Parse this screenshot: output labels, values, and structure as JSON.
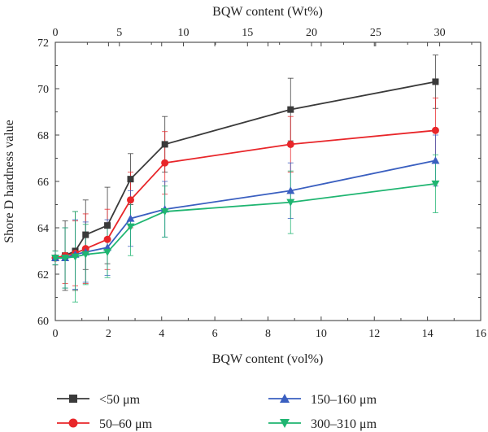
{
  "chart_data": {
    "type": "line",
    "xlabel": "BQW content (vol%)",
    "x2label": "BQW content (Wt%)",
    "ylabel": "Shore D hardness value",
    "xlim": [
      0,
      16
    ],
    "ylim": [
      60,
      72
    ],
    "x2lim": [
      0,
      33.2
    ],
    "xticks": [
      "0",
      "2",
      "4",
      "6",
      "8",
      "10",
      "12",
      "14",
      "16"
    ],
    "x2ticks": [
      "0",
      "5",
      "10",
      "15",
      "20",
      "25",
      "30"
    ],
    "yticks": [
      "60",
      "62",
      "64",
      "66",
      "68",
      "70",
      "72"
    ],
    "grid": false,
    "legend_position": "bottom",
    "series": [
      {
        "name": "<50 μm",
        "color": "#3a3a3a",
        "marker": "square",
        "points": [
          {
            "x": 0.0,
            "y": 62.7,
            "err": 0.3
          },
          {
            "x": 0.37,
            "y": 62.8,
            "err": 1.5
          },
          {
            "x": 0.75,
            "y": 63.0,
            "err": 1.7
          },
          {
            "x": 1.14,
            "y": 63.7,
            "err": 1.5
          },
          {
            "x": 1.96,
            "y": 64.1,
            "err": 1.65
          },
          {
            "x": 2.83,
            "y": 66.1,
            "err": 1.1
          },
          {
            "x": 4.12,
            "y": 67.6,
            "err": 1.2
          },
          {
            "x": 8.85,
            "y": 69.1,
            "err": 1.35
          },
          {
            "x": 14.3,
            "y": 70.3,
            "err": 1.15
          }
        ]
      },
      {
        "name": "50–60 μm",
        "color": "#e8262a",
        "marker": "circle",
        "points": [
          {
            "x": 0.0,
            "y": 62.7,
            "err": 0.3
          },
          {
            "x": 0.37,
            "y": 62.8,
            "err": 1.2
          },
          {
            "x": 0.75,
            "y": 62.9,
            "err": 1.4
          },
          {
            "x": 1.14,
            "y": 63.1,
            "err": 1.5
          },
          {
            "x": 1.96,
            "y": 63.5,
            "err": 1.3
          },
          {
            "x": 2.83,
            "y": 65.2,
            "err": 1.2
          },
          {
            "x": 4.12,
            "y": 66.8,
            "err": 1.35
          },
          {
            "x": 8.85,
            "y": 67.6,
            "err": 1.2
          },
          {
            "x": 14.3,
            "y": 68.2,
            "err": 1.4
          }
        ]
      },
      {
        "name": "150–160 μm",
        "color": "#3a5fc0",
        "marker": "triangle-up",
        "points": [
          {
            "x": 0.0,
            "y": 62.7,
            "err": 0.3
          },
          {
            "x": 0.37,
            "y": 62.7,
            "err": 1.3
          },
          {
            "x": 0.75,
            "y": 62.85,
            "err": 1.5
          },
          {
            "x": 1.14,
            "y": 62.95,
            "err": 1.3
          },
          {
            "x": 1.96,
            "y": 63.15,
            "err": 1.2
          },
          {
            "x": 2.83,
            "y": 64.4,
            "err": 1.2
          },
          {
            "x": 4.12,
            "y": 64.8,
            "err": 1.2
          },
          {
            "x": 8.85,
            "y": 65.6,
            "err": 1.2
          },
          {
            "x": 14.3,
            "y": 66.9,
            "err": 1.1
          }
        ]
      },
      {
        "name": "300–310 μm",
        "color": "#1fb571",
        "marker": "triangle-down",
        "points": [
          {
            "x": 0.0,
            "y": 62.7,
            "err": 0.3
          },
          {
            "x": 0.37,
            "y": 62.7,
            "err": 1.3
          },
          {
            "x": 0.75,
            "y": 62.75,
            "err": 1.95
          },
          {
            "x": 1.14,
            "y": 62.85,
            "err": 1.3
          },
          {
            "x": 1.96,
            "y": 62.95,
            "err": 1.1
          },
          {
            "x": 2.83,
            "y": 64.05,
            "err": 1.25
          },
          {
            "x": 4.12,
            "y": 64.7,
            "err": 1.1
          },
          {
            "x": 8.85,
            "y": 65.1,
            "err": 1.35
          },
          {
            "x": 14.3,
            "y": 65.9,
            "err": 1.25
          }
        ]
      }
    ]
  }
}
